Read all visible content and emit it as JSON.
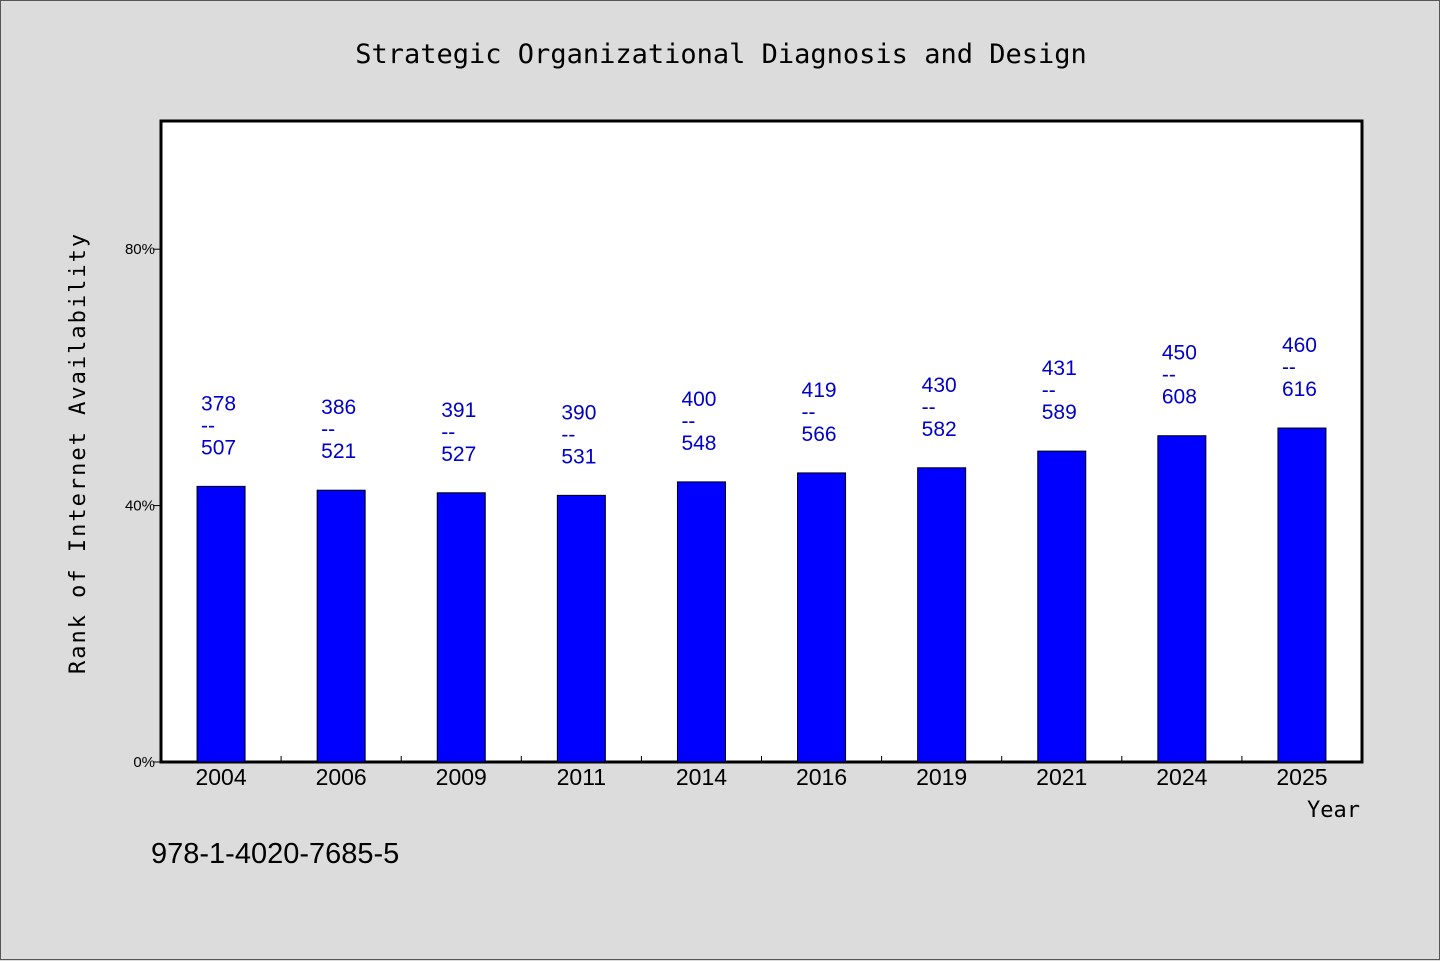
{
  "chart_data": {
    "type": "bar",
    "title": "Strategic Organizational Diagnosis and Design",
    "xlabel": "Year",
    "ylabel": "Rank of Internet Availability",
    "categories": [
      "2004",
      "2006",
      "2009",
      "2011",
      "2014",
      "2016",
      "2019",
      "2021",
      "2024",
      "2025"
    ],
    "values": [
      0.43,
      0.424,
      0.42,
      0.416,
      0.437,
      0.451,
      0.459,
      0.485,
      0.509,
      0.521
    ],
    "data_labels": [
      [
        "378",
        "--",
        "507"
      ],
      [
        "386",
        "--",
        "521"
      ],
      [
        "391",
        "--",
        "527"
      ],
      [
        "390",
        "--",
        "531"
      ],
      [
        "400",
        "--",
        "548"
      ],
      [
        "419",
        "--",
        "566"
      ],
      [
        "430",
        "--",
        "582"
      ],
      [
        "431",
        "--",
        "589"
      ],
      [
        "450",
        "--",
        "608"
      ],
      [
        "460",
        "--",
        "616"
      ]
    ],
    "ylim": [
      0,
      1.0
    ],
    "yticks": [
      0,
      0.4,
      0.8
    ],
    "ytick_labels": [
      "0%",
      "40%",
      "80%"
    ],
    "bar_color": "#0000ff",
    "label_color": "#0000cc",
    "grid": false,
    "legend": "none"
  },
  "footer_text": "978-1-4020-7685-5",
  "colors": {
    "background": "#dcdcdc",
    "plot_background": "#ffffff",
    "axis": "#000000"
  }
}
